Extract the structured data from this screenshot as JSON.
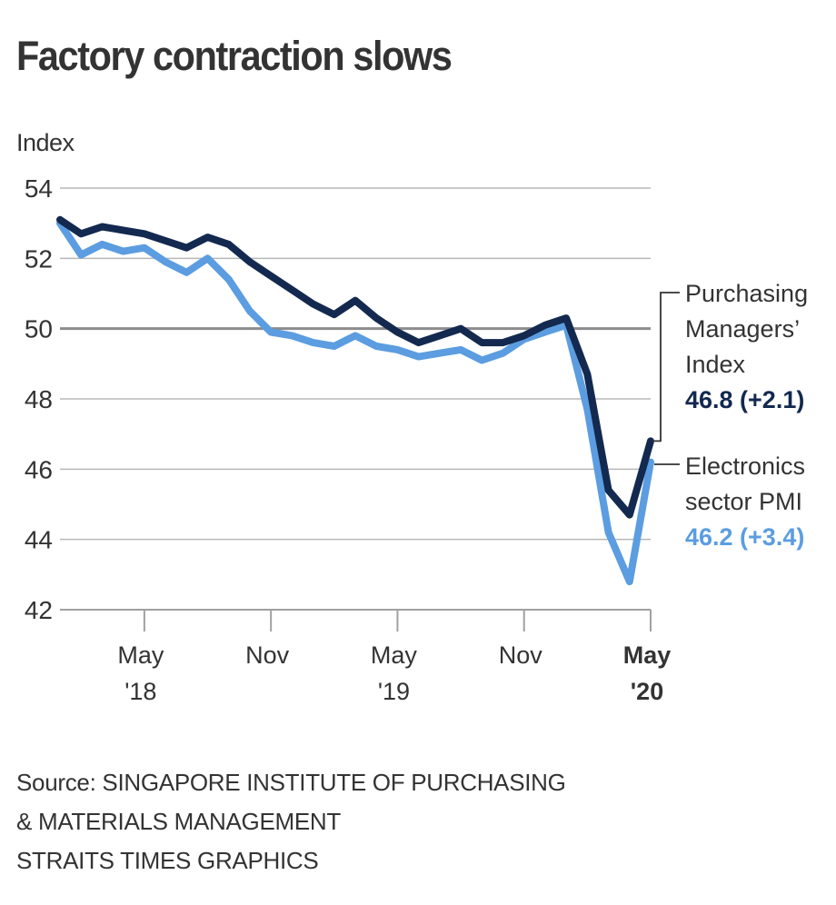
{
  "title": "Factory contraction slows",
  "footer": {
    "source_line1": "Source: SINGAPORE INSTITUTE OF PURCHASING",
    "source_line2": "& MATERIALS MANAGEMENT",
    "credit": "STRAITS TIMES GRAPHICS"
  },
  "chart_data": {
    "type": "line",
    "title": "Factory contraction slows",
    "xlabel": "",
    "ylabel": "Index",
    "ylim": [
      42,
      54
    ],
    "yticks": [
      54,
      52,
      50,
      48,
      46,
      44,
      42
    ],
    "reference_line": 50,
    "grid": true,
    "x": [
      "Jan 2018",
      "Feb 2018",
      "Mar 2018",
      "Apr 2018",
      "May 2018",
      "Jun 2018",
      "Jul 2018",
      "Aug 2018",
      "Sep 2018",
      "Oct 2018",
      "Nov 2018",
      "Dec 2018",
      "Jan 2019",
      "Feb 2019",
      "Mar 2019",
      "Apr 2019",
      "May 2019",
      "Jun 2019",
      "Jul 2019",
      "Aug 2019",
      "Sep 2019",
      "Oct 2019",
      "Nov 2019",
      "Dec 2019",
      "Jan 2020",
      "Feb 2020",
      "Mar 2020",
      "Apr 2020",
      "May 2020"
    ],
    "xticks": [
      {
        "index": 4,
        "month": "May",
        "year": "'18",
        "bold": false
      },
      {
        "index": 10,
        "month": "Nov",
        "year": "",
        "bold": false
      },
      {
        "index": 16,
        "month": "May",
        "year": "'19",
        "bold": false
      },
      {
        "index": 22,
        "month": "Nov",
        "year": "",
        "bold": false
      },
      {
        "index": 28,
        "month": "May",
        "year": "'20",
        "bold": true
      }
    ],
    "series": [
      {
        "name": "Purchasing Managers' Index",
        "label_lines": [
          "Purchasing",
          "Managers’",
          "Index"
        ],
        "value_label": "46.8 (+2.1)",
        "color": "#13294f",
        "values": [
          53.1,
          52.7,
          52.9,
          52.8,
          52.7,
          52.5,
          52.3,
          52.6,
          52.4,
          51.9,
          51.5,
          51.1,
          50.7,
          50.4,
          50.8,
          50.3,
          49.9,
          49.6,
          49.8,
          50.0,
          49.6,
          49.6,
          49.8,
          50.1,
          50.3,
          48.7,
          45.4,
          44.7,
          46.8
        ]
      },
      {
        "name": "Electronics sector PMI",
        "label_lines": [
          "Electronics",
          "sector PMI"
        ],
        "value_label": "46.2 (+3.4)",
        "color": "#5b9de0",
        "values": [
          53.0,
          52.1,
          52.4,
          52.2,
          52.3,
          51.9,
          51.6,
          52.0,
          51.4,
          50.5,
          49.9,
          49.8,
          49.6,
          49.5,
          49.8,
          49.5,
          49.4,
          49.2,
          49.3,
          49.4,
          49.1,
          49.3,
          49.7,
          49.9,
          50.1,
          47.7,
          44.2,
          42.8,
          46.2
        ]
      }
    ]
  }
}
